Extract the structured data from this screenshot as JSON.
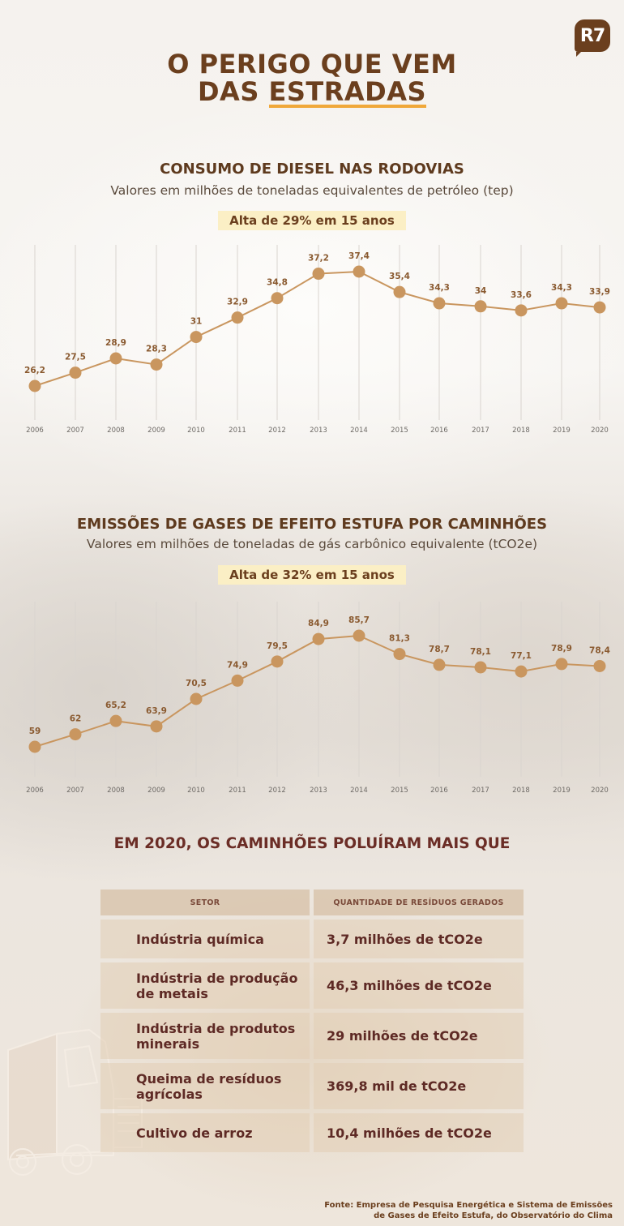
{
  "logo": {
    "text": "R7"
  },
  "header": {
    "title_line1": "O PERIGO QUE VEM",
    "title_line2_prefix": "DAS ",
    "title_line2_underlined": "ESTRADAS"
  },
  "colors": {
    "title_brown": "#6b3f1e",
    "accent_orange": "#f0a83a",
    "line_tan": "#c9965f",
    "badge_bg": "#fbefc5",
    "table_text": "#5e2a25"
  },
  "diesel": {
    "title": "CONSUMO DE DIESEL NAS RODOVIAS",
    "subtitle": "Valores em milhões de toneladas equivalentes de petróleo (tep)",
    "badge": "Alta de 29% em 15 anos"
  },
  "emissions": {
    "title": "EMISSÕES DE GASES DE EFEITO ESTUFA POR CAMINHÕES",
    "subtitle": "Valores em milhões de toneladas de gás carbônico equivalente (tCO2e)",
    "badge": "Alta de 32% em 15 anos"
  },
  "chart_data": [
    {
      "type": "line",
      "title": "CONSUMO DE DIESEL NAS RODOVIAS",
      "subtitle": "Valores em milhões de toneladas equivalentes de petróleo (tep)",
      "annotation": "Alta de 29% em 15 anos",
      "xlabel": "",
      "ylabel": "milhões de tep",
      "x": [
        "2006",
        "2007",
        "2008",
        "2009",
        "2010",
        "2011",
        "2012",
        "2013",
        "2014",
        "2015",
        "2016",
        "2017",
        "2018",
        "2019",
        "2020"
      ],
      "values": [
        26.2,
        27.5,
        28.9,
        28.3,
        31,
        32.9,
        34.8,
        37.2,
        37.4,
        35.4,
        34.3,
        34,
        33.6,
        34.3,
        33.9
      ],
      "labels": [
        "26,2",
        "27,5",
        "28,9",
        "28,3",
        "31",
        "32,9",
        "34,8",
        "37,2",
        "37,4",
        "35,4",
        "34,3",
        "34",
        "33,6",
        "34,3",
        "33,9"
      ],
      "grid": "vertical",
      "legend": "none"
    },
    {
      "type": "line",
      "title": "EMISSÕES DE GASES DE EFEITO ESTUFA POR CAMINHÕES",
      "subtitle": "Valores em milhões de toneladas de gás carbônico equivalente (tCO2e)",
      "annotation": "Alta de 32% em 15 anos",
      "xlabel": "",
      "ylabel": "milhões de tCO2e",
      "x": [
        "2006",
        "2007",
        "2008",
        "2009",
        "2010",
        "2011",
        "2012",
        "2013",
        "2014",
        "2015",
        "2016",
        "2017",
        "2018",
        "2019",
        "2020"
      ],
      "values": [
        59,
        62,
        65.2,
        63.9,
        70.5,
        74.9,
        79.5,
        84.9,
        85.7,
        81.3,
        78.7,
        78.1,
        77.1,
        78.9,
        78.4
      ],
      "labels": [
        "59",
        "62",
        "65,2",
        "63,9",
        "70,5",
        "74,9",
        "79,5",
        "84,9",
        "85,7",
        "81,3",
        "78,7",
        "78,1",
        "77,1",
        "78,9",
        "78,4"
      ],
      "grid": "vertical",
      "legend": "none"
    },
    {
      "type": "table",
      "title": "EM 2020, OS CAMINHÕES POLUÍRAM MAIS QUE",
      "columns": [
        "SETOR",
        "QUANTIDADE DE RESÍDUOS GERADOS"
      ],
      "rows": [
        [
          "Indústria química",
          "3,7 milhões de tCO2e"
        ],
        [
          "Indústria de produção de metais",
          "46,3 milhões de tCO2e"
        ],
        [
          "Indústria de produtos minerais",
          "29 milhões de tCO2e"
        ],
        [
          "Queima de resíduos agrícolas",
          "369,8 mil de tCO2e"
        ],
        [
          "Cultivo de arroz",
          "10,4 milhões de tCO2e"
        ]
      ]
    }
  ],
  "table": {
    "title": "EM 2020, OS CAMINHÕES POLUÍRAM MAIS QUE",
    "headers": [
      "SETOR",
      "QUANTIDADE DE RESÍDUOS GERADOS"
    ],
    "rows": [
      {
        "sector": "Indústria química",
        "amount": "3,7 milhões de tCO2e"
      },
      {
        "sector": "Indústria de produção de metais",
        "amount": "46,3 milhões de tCO2e"
      },
      {
        "sector": "Indústria de produtos minerais",
        "amount": "29 milhões de tCO2e"
      },
      {
        "sector": "Queima de resíduos agrícolas",
        "amount": "369,8 mil de tCO2e"
      },
      {
        "sector": "Cultivo de arroz",
        "amount": "10,4 milhões de tCO2e"
      }
    ]
  },
  "source": {
    "line1": "Fonte: Empresa de Pesquisa Energética e Sistema de Emissões",
    "line2": "de Gases de Efeito Estufa, do Observatório do Clima"
  }
}
